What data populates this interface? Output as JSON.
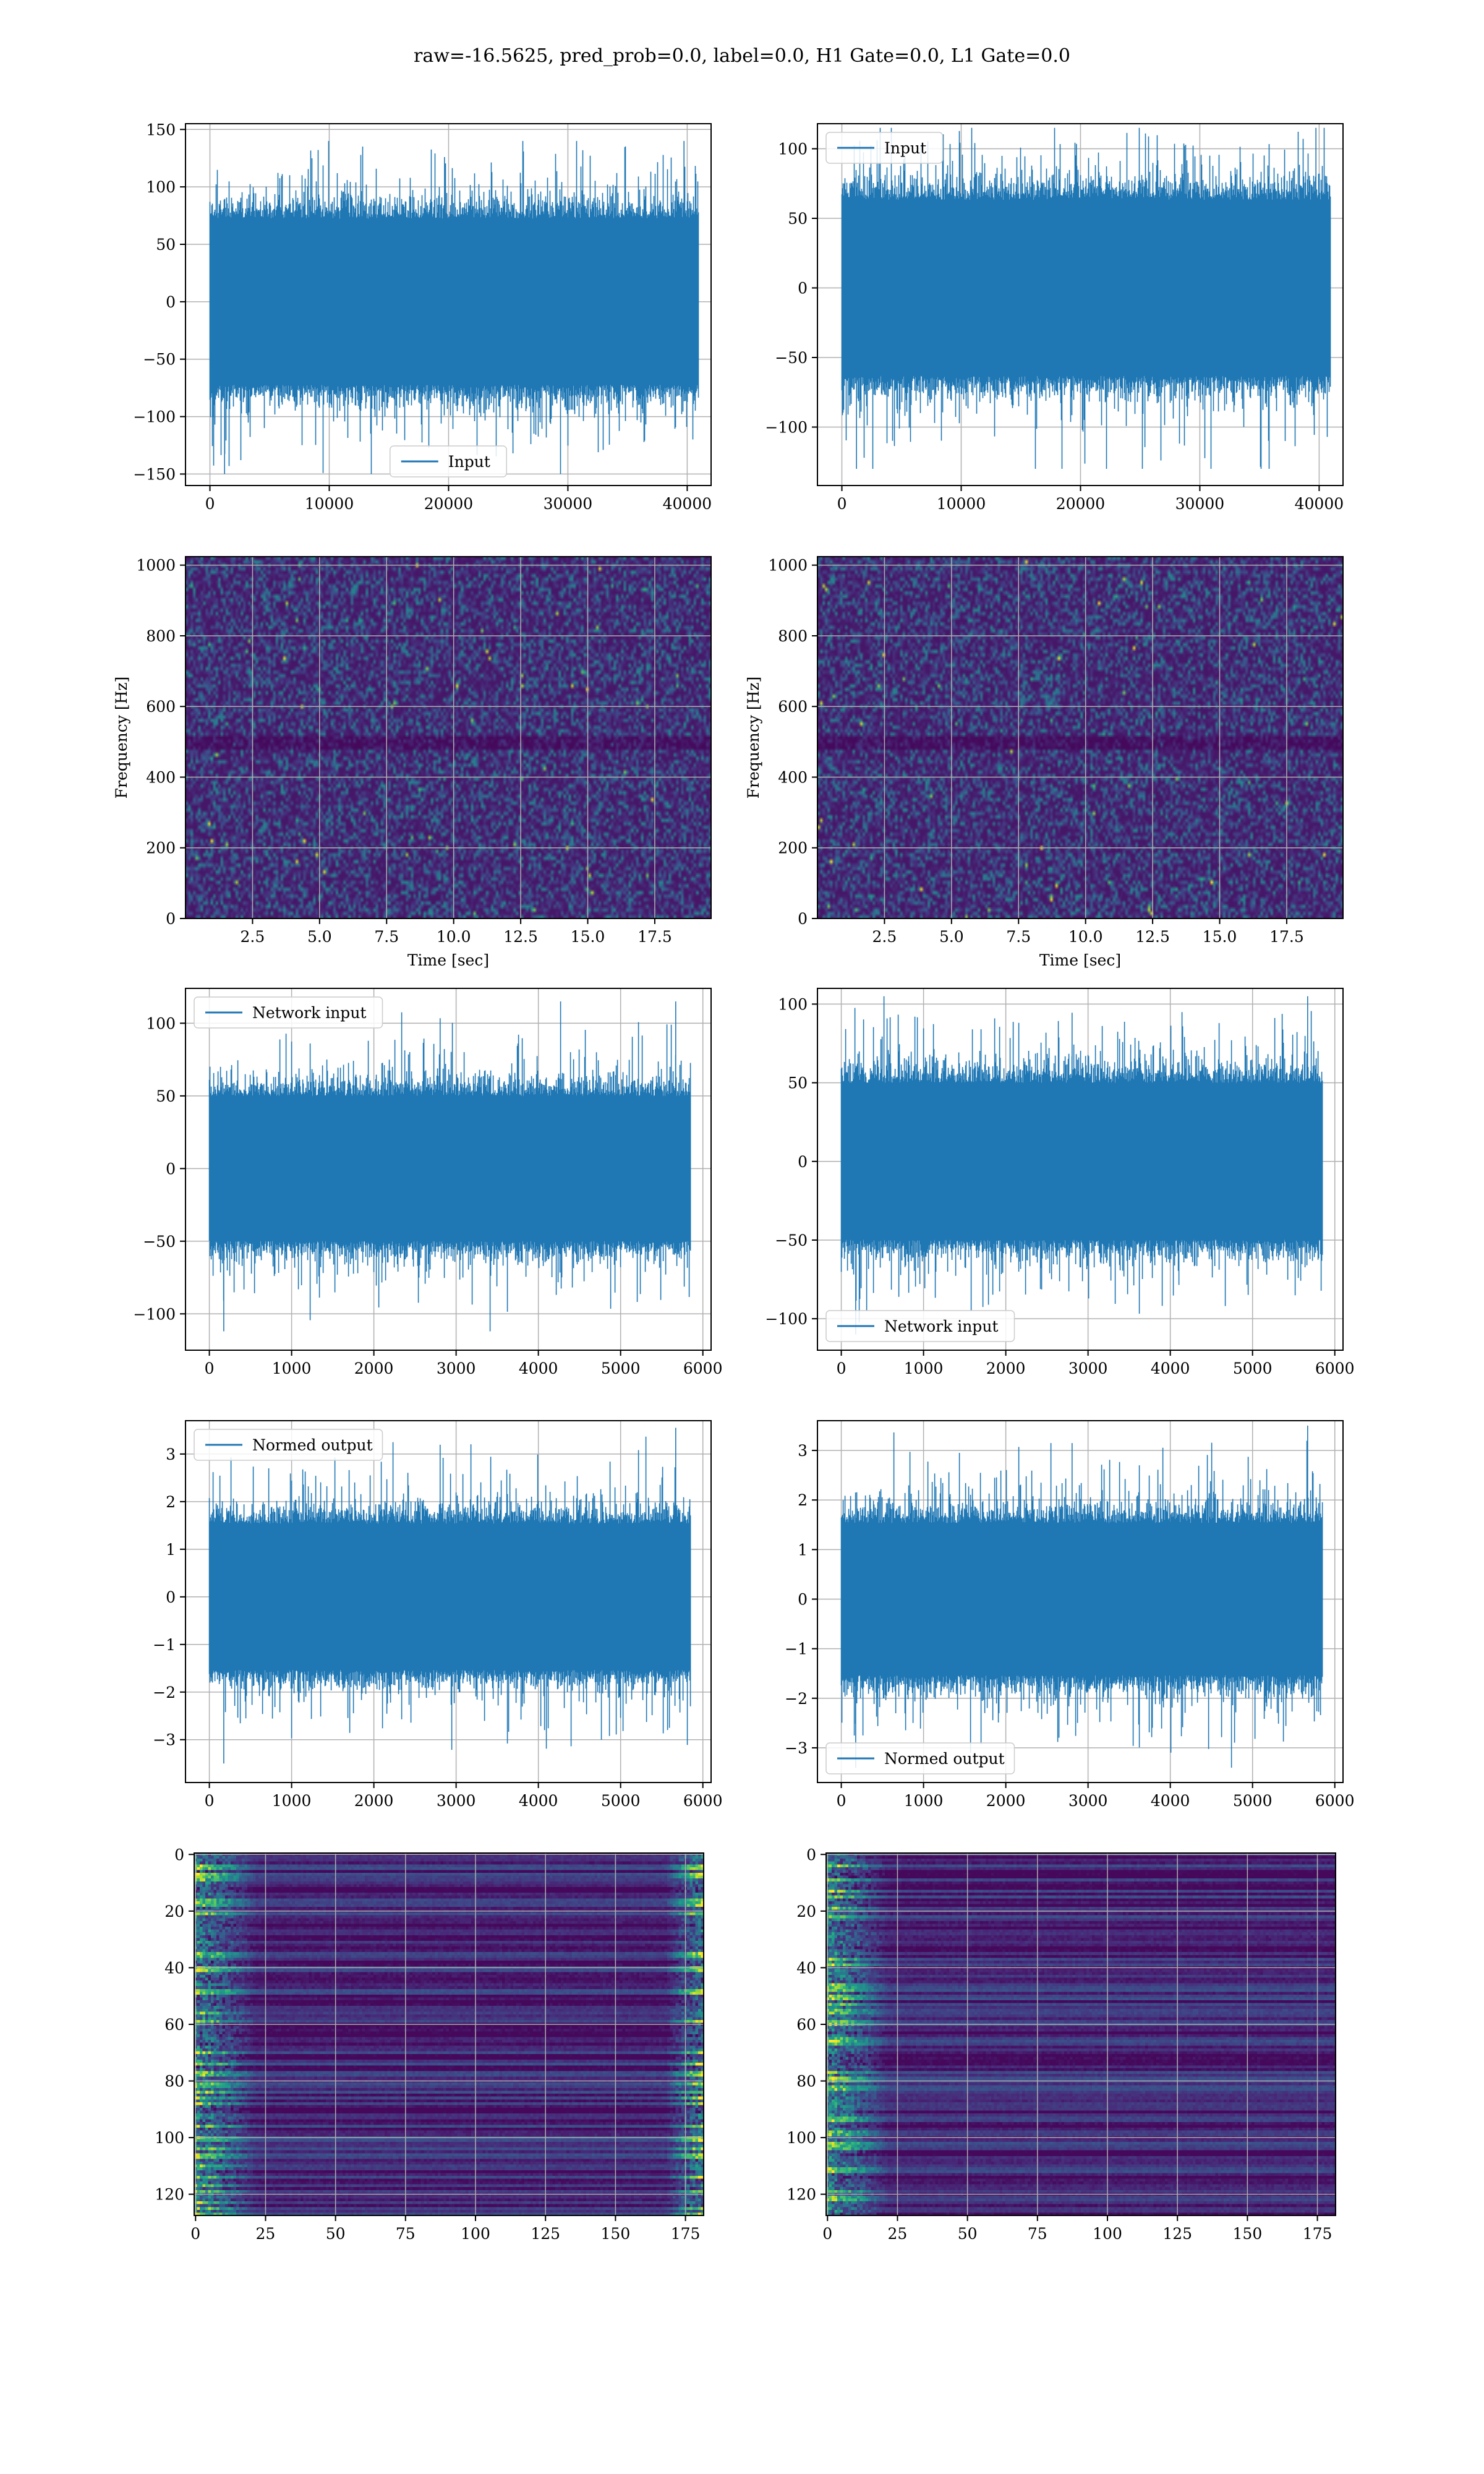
{
  "figure": {
    "suptitle": "raw=-16.5625, pred_prob=0.0, label=0.0, H1 Gate=0.0, L1 Gate=0.0",
    "line_color": "#1f77b4",
    "grid_color": "#b0b0b0",
    "colormap": "viridis"
  },
  "chart_data": [
    {
      "id": "h1-input",
      "type": "line",
      "row": 0,
      "col": 0,
      "title": "",
      "xlabel": "",
      "ylabel": "",
      "xlim": [
        -2048,
        42000
      ],
      "ylim": [
        -160,
        155
      ],
      "xticks": [
        0,
        10000,
        20000,
        30000,
        40000
      ],
      "yticks": [
        -150,
        -100,
        -50,
        0,
        50,
        100,
        150
      ],
      "yticklabels": [
        "−150",
        "−100",
        "−50",
        "0",
        "50",
        "100",
        "150"
      ],
      "grid": true,
      "legend": {
        "label": "Input",
        "loc": "lower center"
      },
      "series": [
        {
          "name": "Input",
          "n_points": 40960,
          "x_range": [
            0,
            40960
          ],
          "envelope": [
            -80,
            80
          ],
          "extremes": [
            -150,
            140
          ]
        }
      ]
    },
    {
      "id": "l1-input",
      "type": "line",
      "row": 0,
      "col": 1,
      "title": "",
      "xlabel": "",
      "ylabel": "",
      "xlim": [
        -2048,
        42000
      ],
      "ylim": [
        -142,
        118
      ],
      "xticks": [
        0,
        10000,
        20000,
        30000,
        40000
      ],
      "yticks": [
        -100,
        -50,
        0,
        50,
        100
      ],
      "yticklabels": [
        "−100",
        "−50",
        "0",
        "50",
        "100"
      ],
      "grid": true,
      "legend": {
        "label": "Input",
        "loc": "upper left"
      },
      "series": [
        {
          "name": "Input",
          "n_points": 40960,
          "x_range": [
            0,
            40960
          ],
          "envelope": [
            -70,
            70
          ],
          "extremes": [
            -130,
            115
          ]
        }
      ]
    },
    {
      "id": "h1-spectrogram",
      "type": "heatmap",
      "row": 1,
      "col": 0,
      "title": "",
      "xlabel": "Time [sec]",
      "ylabel": "Frequency [Hz]",
      "xlim": [
        0,
        19.6
      ],
      "ylim": [
        0,
        1024
      ],
      "xticks": [
        2.5,
        5.0,
        7.5,
        10.0,
        12.5,
        15.0,
        17.5
      ],
      "xticklabels": [
        "2.5",
        "5.0",
        "7.5",
        "10.0",
        "12.5",
        "15.0",
        "17.5"
      ],
      "yticks": [
        0,
        200,
        400,
        600,
        800,
        1000
      ],
      "grid": true,
      "colormap": "viridis"
    },
    {
      "id": "l1-spectrogram",
      "type": "heatmap",
      "row": 1,
      "col": 1,
      "title": "",
      "xlabel": "Time [sec]",
      "ylabel": "Frequency [Hz]",
      "xlim": [
        0,
        19.6
      ],
      "ylim": [
        0,
        1024
      ],
      "xticks": [
        2.5,
        5.0,
        7.5,
        10.0,
        12.5,
        15.0,
        17.5
      ],
      "xticklabels": [
        "2.5",
        "5.0",
        "7.5",
        "10.0",
        "12.5",
        "15.0",
        "17.5"
      ],
      "yticks": [
        0,
        200,
        400,
        600,
        800,
        1000
      ],
      "grid": true,
      "colormap": "viridis"
    },
    {
      "id": "h1-network-input",
      "type": "line",
      "row": 2,
      "col": 0,
      "title": "",
      "xlabel": "",
      "ylabel": "",
      "xlim": [
        -290,
        6100
      ],
      "ylim": [
        -125,
        124
      ],
      "xticks": [
        0,
        1000,
        2000,
        3000,
        4000,
        5000,
        6000
      ],
      "yticks": [
        -100,
        -50,
        0,
        50,
        100
      ],
      "yticklabels": [
        "−100",
        "−50",
        "0",
        "50",
        "100"
      ],
      "grid": true,
      "legend": {
        "label": "Network input",
        "loc": "upper left"
      },
      "series": [
        {
          "name": "Network input",
          "n_points": 5845,
          "x_range": [
            0,
            5845
          ],
          "envelope": [
            -55,
            55
          ],
          "extremes": [
            -112,
            115
          ]
        }
      ]
    },
    {
      "id": "l1-network-input",
      "type": "line",
      "row": 2,
      "col": 1,
      "title": "",
      "xlabel": "",
      "ylabel": "",
      "xlim": [
        -290,
        6100
      ],
      "ylim": [
        -120,
        110
      ],
      "xticks": [
        0,
        1000,
        2000,
        3000,
        4000,
        5000,
        6000
      ],
      "yticks": [
        -100,
        -50,
        0,
        50,
        100
      ],
      "yticklabels": [
        "−100",
        "−50",
        "0",
        "50",
        "100"
      ],
      "grid": true,
      "legend": {
        "label": "Network input",
        "loc": "lower left"
      },
      "series": [
        {
          "name": "Network input",
          "n_points": 5845,
          "x_range": [
            0,
            5845
          ],
          "envelope": [
            -55,
            55
          ],
          "extremes": [
            -110,
            105
          ]
        }
      ]
    },
    {
      "id": "h1-normed-output",
      "type": "line",
      "row": 3,
      "col": 0,
      "title": "",
      "xlabel": "",
      "ylabel": "",
      "xlim": [
        -290,
        6100
      ],
      "ylim": [
        -3.9,
        3.7
      ],
      "xticks": [
        0,
        1000,
        2000,
        3000,
        4000,
        5000,
        6000
      ],
      "yticks": [
        -3,
        -2,
        -1,
        0,
        1,
        2,
        3
      ],
      "yticklabels": [
        "−3",
        "−2",
        "−1",
        "0",
        "1",
        "2",
        "3"
      ],
      "grid": true,
      "legend": {
        "label": "Normed output",
        "loc": "upper left"
      },
      "series": [
        {
          "name": "Normed output",
          "n_points": 5845,
          "x_range": [
            0,
            5845
          ],
          "envelope": [
            -1.7,
            1.7
          ],
          "extremes": [
            -3.5,
            3.55
          ]
        }
      ]
    },
    {
      "id": "l1-normed-output",
      "type": "line",
      "row": 3,
      "col": 1,
      "title": "",
      "xlabel": "",
      "ylabel": "",
      "xlim": [
        -290,
        6100
      ],
      "ylim": [
        -3.7,
        3.6
      ],
      "xticks": [
        0,
        1000,
        2000,
        3000,
        4000,
        5000,
        6000
      ],
      "yticks": [
        -3,
        -2,
        -1,
        0,
        1,
        2,
        3
      ],
      "yticklabels": [
        "−3",
        "−2",
        "−1",
        "0",
        "1",
        "2",
        "3"
      ],
      "grid": true,
      "legend": {
        "label": "Normed output",
        "loc": "lower left"
      },
      "series": [
        {
          "name": "Normed output",
          "n_points": 5845,
          "x_range": [
            0,
            5845
          ],
          "envelope": [
            -1.7,
            1.7
          ],
          "extremes": [
            -3.4,
            3.5
          ]
        }
      ]
    },
    {
      "id": "h1-feature-map",
      "type": "heatmap",
      "row": 4,
      "col": 0,
      "title": "",
      "xlabel": "",
      "ylabel": "",
      "xlim": [
        -0.5,
        181.5
      ],
      "ylim": [
        127.5,
        -0.5
      ],
      "xticks": [
        0,
        25,
        50,
        75,
        100,
        125,
        150,
        175
      ],
      "yticks": [
        0,
        20,
        40,
        60,
        80,
        100,
        120
      ],
      "grid": true,
      "colormap": "viridis",
      "shape": [
        128,
        182
      ]
    },
    {
      "id": "l1-feature-map",
      "type": "heatmap",
      "row": 4,
      "col": 1,
      "title": "",
      "xlabel": "",
      "ylabel": "",
      "xlim": [
        -0.5,
        181.5
      ],
      "ylim": [
        127.5,
        -0.5
      ],
      "xticks": [
        0,
        25,
        50,
        75,
        100,
        125,
        150,
        175
      ],
      "yticks": [
        0,
        20,
        40,
        60,
        80,
        100,
        120
      ],
      "grid": true,
      "colormap": "viridis",
      "shape": [
        128,
        182
      ]
    }
  ]
}
